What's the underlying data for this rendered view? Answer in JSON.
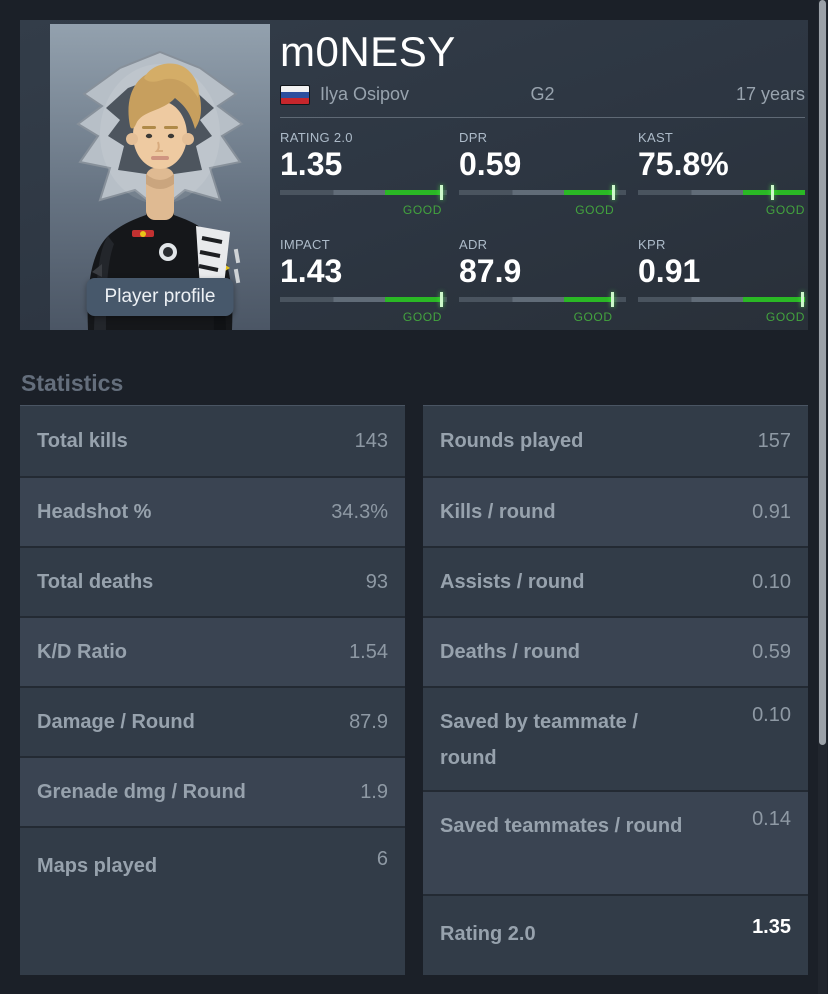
{
  "colors": {
    "accent_green": "#2ab825",
    "good_text": "#43a33e",
    "card_bg": "#2e3844",
    "page_bg": "#1b2028"
  },
  "profile": {
    "title": "m0NESY",
    "real_name": "Ilya Osipov",
    "nationality": "Russia",
    "team": "G2",
    "age": "17 years",
    "button_label": "Player profile",
    "stats": [
      {
        "label": "RATING 2.0",
        "value": "1.35",
        "rating_label": "GOOD",
        "green_end_pct": 97,
        "tick_pct": 97
      },
      {
        "label": "DPR",
        "value": "0.59",
        "rating_label": "GOOD",
        "green_end_pct": 93,
        "tick_pct": 93
      },
      {
        "label": "KAST",
        "value": "75.8%",
        "rating_label": "GOOD",
        "green_end_pct": 100,
        "tick_pct": 81
      },
      {
        "label": "IMPACT",
        "value": "1.43",
        "rating_label": "GOOD",
        "green_end_pct": 97,
        "tick_pct": 97
      },
      {
        "label": "ADR",
        "value": "87.9",
        "rating_label": "GOOD",
        "green_end_pct": 92,
        "tick_pct": 92
      },
      {
        "label": "KPR",
        "value": "0.91",
        "rating_label": "GOOD",
        "green_end_pct": 100,
        "tick_pct": 99
      }
    ]
  },
  "statistics": {
    "heading": "Statistics",
    "left": [
      {
        "label": "Total kills",
        "value": "143"
      },
      {
        "label": "Headshot %",
        "value": "34.3%"
      },
      {
        "label": "Total deaths",
        "value": "93"
      },
      {
        "label": "K/D Ratio",
        "value": "1.54"
      },
      {
        "label": "Damage / Round",
        "value": "87.9"
      },
      {
        "label": "Grenade dmg / Round",
        "value": "1.9"
      },
      {
        "label": "Maps played",
        "value": "6",
        "fill": true
      }
    ],
    "right": [
      {
        "label": "Rounds played",
        "value": "157"
      },
      {
        "label": "Kills / round",
        "value": "0.91"
      },
      {
        "label": "Assists / round",
        "value": "0.10"
      },
      {
        "label": "Deaths / round",
        "value": "0.59"
      },
      {
        "label": "Saved by teammate / round",
        "value": "0.10",
        "tall": true
      },
      {
        "label": "Saved teammates / round",
        "value": "0.14",
        "tall": true
      },
      {
        "label": "Rating 2.0",
        "value": "1.35",
        "emphasis": true,
        "fill": true
      }
    ]
  }
}
